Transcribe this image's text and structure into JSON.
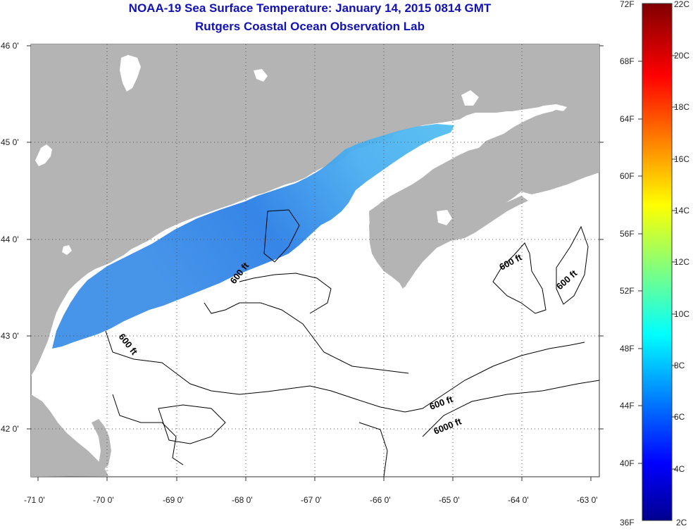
{
  "title": {
    "line1": "NOAA-19 Sea Surface Temperature:  January 14, 2015 0814 GMT",
    "line2": "Rutgers Coastal Ocean Observation Lab"
  },
  "map": {
    "lat_ticks": [
      "46 0'",
      "45 0'",
      "44 0'",
      "43 0'",
      "42 0'"
    ],
    "lon_ticks": [
      "-71 0'",
      "-70 0'",
      "-69 0'",
      "-68 0'",
      "-67 0'",
      "-66 0'",
      "-65 0'",
      "-64 0'",
      "-63 0'"
    ],
    "contour_labels": [
      "600 ft",
      "600 ft",
      "600 ft",
      "600 ft",
      "600 ft",
      "6000 ft"
    ],
    "colors": {
      "land": "#b4b4b4",
      "water": "#ffffff",
      "grid": "#555555"
    }
  },
  "colorbar": {
    "fahrenheit_labels": [
      "72F",
      "68F",
      "64F",
      "60F",
      "56F",
      "52F",
      "48F",
      "44F",
      "40F",
      "36F"
    ],
    "celsius_labels": [
      "22C",
      "20C",
      "18C",
      "16C",
      "14C",
      "12C",
      "10C",
      "8C",
      "6C",
      "4C",
      "2C"
    ],
    "colormap": "jet",
    "range_f": [
      36,
      72
    ],
    "range_c": [
      2,
      22
    ]
  }
}
